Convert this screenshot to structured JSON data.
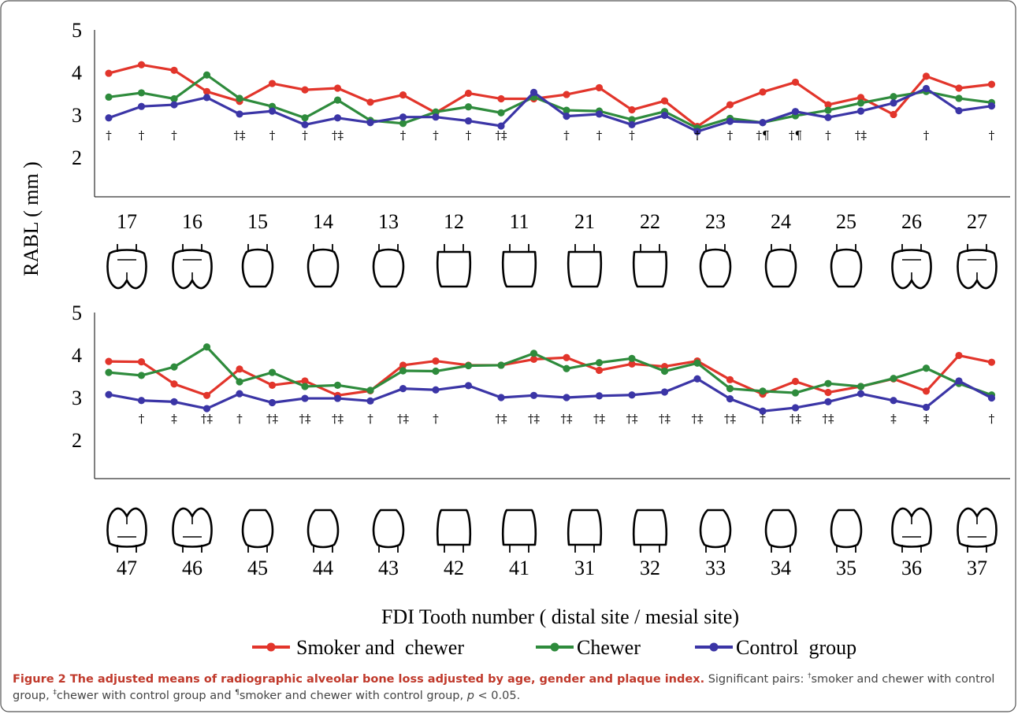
{
  "chart_data": {
    "type": "line",
    "ylabel": "RABL ( mm )",
    "xlabel": "FDI Tooth number ( distal site / mesial site)",
    "ylim": [
      1,
      5
    ],
    "yticks": [
      2,
      3,
      4,
      5
    ],
    "legend": {
      "placement": "bottom-center",
      "entries": [
        "Smoker and  chewer",
        "Chewer",
        "Control  group"
      ]
    },
    "colors": {
      "smoker_chewer": "#e2352b",
      "chewer": "#2e8b3c",
      "control": "#3b35a6"
    },
    "upper": {
      "teeth": [
        "17",
        "16",
        "15",
        "14",
        "13",
        "12",
        "11",
        "21",
        "22",
        "23",
        "24",
        "25",
        "26",
        "27"
      ],
      "series": [
        {
          "name": "Smoker and  chewer",
          "values": [
            3.98,
            4.18,
            4.05,
            3.55,
            3.32,
            3.74,
            3.59,
            3.63,
            3.3,
            3.47,
            3.05,
            3.51,
            3.38,
            3.38,
            3.48,
            3.64,
            3.12,
            3.33,
            2.73,
            3.24,
            3.54,
            3.77,
            3.24,
            3.41,
            3.01,
            3.91,
            3.63,
            3.72
          ]
        },
        {
          "name": "Chewer",
          "values": [
            3.42,
            3.52,
            3.38,
            3.94,
            3.39,
            3.2,
            2.93,
            3.35,
            2.87,
            2.8,
            3.07,
            3.19,
            3.05,
            3.42,
            3.11,
            3.09,
            2.89,
            3.08,
            2.69,
            2.92,
            2.82,
            2.98,
            3.11,
            3.28,
            3.43,
            3.55,
            3.39,
            3.29
          ]
        },
        {
          "name": "Control  group",
          "values": [
            2.93,
            3.2,
            3.24,
            3.41,
            3.02,
            3.09,
            2.77,
            2.93,
            2.82,
            2.95,
            2.95,
            2.86,
            2.74,
            3.53,
            2.97,
            3.02,
            2.77,
            2.99,
            2.61,
            2.85,
            2.82,
            3.08,
            2.94,
            3.09,
            3.28,
            3.62,
            3.1,
            3.21
          ]
        }
      ],
      "annotations": [
        "†",
        "†",
        "†",
        "",
        "†‡",
        "†",
        "†",
        "†‡",
        "",
        "†",
        "†",
        "†",
        "†‡",
        "",
        "†",
        "†",
        "†",
        "",
        "†",
        "†",
        "†¶",
        "†¶",
        "†",
        "†‡",
        "",
        "†",
        "",
        "†"
      ]
    },
    "lower": {
      "teeth": [
        "47",
        "46",
        "45",
        "44",
        "43",
        "42",
        "41",
        "31",
        "32",
        "33",
        "34",
        "35",
        "36",
        "37"
      ],
      "series": [
        {
          "name": "Smoker and  chewer",
          "values": [
            3.85,
            3.84,
            3.32,
            3.05,
            3.67,
            3.29,
            3.39,
            3.05,
            3.16,
            3.76,
            3.86,
            3.76,
            3.76,
            3.9,
            3.94,
            3.64,
            3.79,
            3.73,
            3.86,
            3.42,
            3.08,
            3.38,
            3.12,
            3.26,
            3.44,
            3.15,
            3.99,
            3.83
          ]
        },
        {
          "name": "Chewer",
          "values": [
            3.59,
            3.52,
            3.72,
            4.19,
            3.37,
            3.59,
            3.26,
            3.29,
            3.17,
            3.63,
            3.62,
            3.75,
            3.76,
            4.04,
            3.68,
            3.82,
            3.92,
            3.62,
            3.81,
            3.21,
            3.15,
            3.11,
            3.33,
            3.26,
            3.45,
            3.69,
            3.33,
            3.06
          ]
        },
        {
          "name": "Control  group",
          "values": [
            3.07,
            2.93,
            2.9,
            2.74,
            3.09,
            2.88,
            2.98,
            2.98,
            2.92,
            3.21,
            3.18,
            3.28,
            3.0,
            3.05,
            3.0,
            3.04,
            3.06,
            3.13,
            3.44,
            2.97,
            2.68,
            2.76,
            2.9,
            3.09,
            2.93,
            2.77,
            3.39,
            2.99
          ]
        }
      ],
      "annotations": [
        "",
        "†",
        "‡",
        "†‡",
        "†",
        "†‡",
        "†‡",
        "†‡",
        "†",
        "†‡",
        "†",
        "",
        "†‡",
        "†‡",
        "†‡",
        "†‡",
        "†‡",
        "†‡",
        "†‡",
        "†‡",
        "†",
        "†‡",
        "†‡",
        "",
        "‡",
        "‡",
        "",
        "†"
      ]
    }
  },
  "caption": {
    "title": "Figure 2 The adjusted means of radiographic alveolar bone loss adjusted by age, gender and plaque index.",
    "intro": " Significant pairs: ",
    "dagger": "†",
    "p1": "smoker and chewer with control group, ",
    "ddagger": "‡",
    "p2": "chewer with control group and ",
    "pilcrow": "¶",
    "p3": "smoker and chewer with control group, ",
    "p_italic": "p",
    "p_value": " < 0.05."
  }
}
